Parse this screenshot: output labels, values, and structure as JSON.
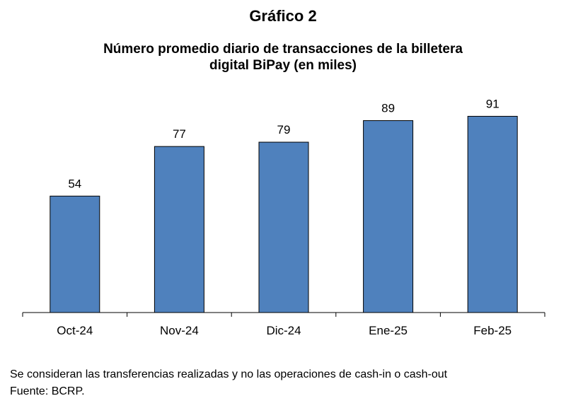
{
  "figure_label": "Gráfico 2",
  "chart_data": {
    "type": "bar",
    "title_lines": [
      "Número promedio diario de transacciones de la billetera",
      "digital BiPay (en miles)"
    ],
    "categories": [
      "Oct-24",
      "Nov-24",
      "Dic-24",
      "Ene-25",
      "Feb-25"
    ],
    "values": [
      54,
      77,
      79,
      89,
      91
    ],
    "data_labels": [
      "54",
      "77",
      "79",
      "89",
      "91"
    ],
    "ylim": [
      0,
      100
    ],
    "grid": false,
    "legend": "none",
    "bar_color": "#4f81bd",
    "bar_stroke": "#000000"
  },
  "notes": {
    "line1": "Se consideran las transferencias realizadas y no las operaciones de cash-in o cash-out",
    "line2": "Fuente: BCRP."
  }
}
